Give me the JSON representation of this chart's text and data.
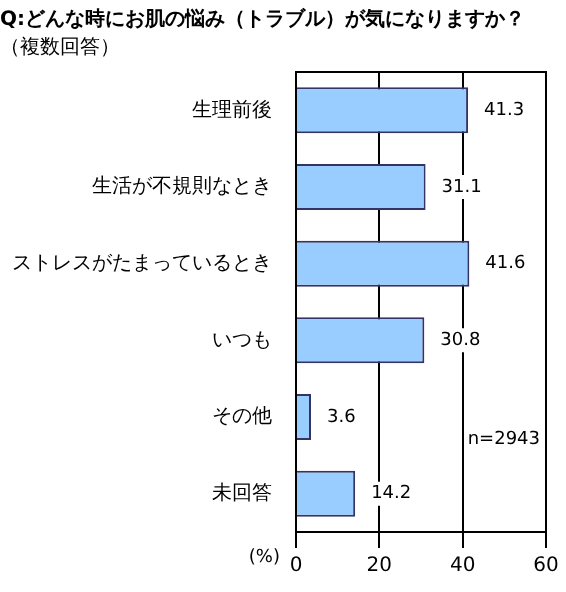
{
  "chart_data": {
    "type": "bar",
    "orientation": "horizontal",
    "title": "Q:どんな時にお肌の悩み（トラブル）が気になりますか？",
    "subtitle": "（複数回答）",
    "xlabel": "(%)",
    "categories": [
      "生理前後",
      "生活が不規則なとき",
      "ストレスがたまっているとき",
      "いつも",
      "その他",
      "未回答"
    ],
    "values": [
      41.3,
      31.1,
      41.6,
      30.8,
      3.6,
      14.2
    ],
    "color": "#99ccff",
    "data_labels": true,
    "xlim": [
      0,
      60
    ],
    "xticks": [
      0,
      20,
      40,
      60
    ],
    "grid": "x",
    "legend": false,
    "annotations": [
      "n=2943"
    ]
  }
}
